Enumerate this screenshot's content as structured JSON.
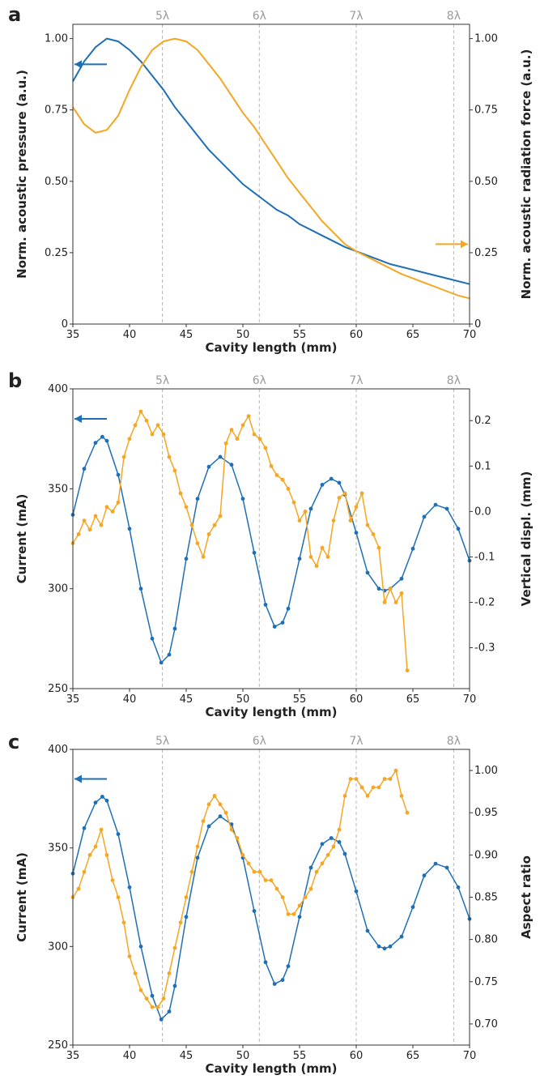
{
  "colors": {
    "blue": "#1f6fb5",
    "orange": "#f5a623",
    "lambda_line": "#b5b5b5",
    "axis": "#333333"
  },
  "chart_data": [
    {
      "panel_label": "a",
      "type": "line",
      "xlabel": "Cavity length (mm)",
      "xlim": [
        35,
        70
      ],
      "xticks": [
        "35",
        "40",
        "45",
        "50",
        "55",
        "60",
        "65",
        "70"
      ],
      "lambda_lines": [
        {
          "label": "5λ",
          "x": 42.9
        },
        {
          "label": "6λ",
          "x": 51.45
        },
        {
          "label": "7λ",
          "x": 60.0
        },
        {
          "label": "8λ",
          "x": 68.6
        }
      ],
      "y_left": {
        "label": "Norm. acoustic pressure (a.u.)",
        "lim": [
          0,
          1.05
        ],
        "ticks": [
          "0",
          "0.25",
          "0.50",
          "0.75",
          "1.00"
        ]
      },
      "y_right": {
        "label": "Norm. acoustic radiation force (a.u.)",
        "lim": [
          0,
          1.05
        ],
        "ticks": [
          "0",
          "0.25",
          "0.50",
          "0.75",
          "1.00"
        ]
      },
      "arrows": [
        {
          "series": "blue",
          "direction": "left",
          "x": 38.0,
          "y": 0.91
        },
        {
          "series": "orange",
          "direction": "right",
          "x": 67.0,
          "y": 0.28
        }
      ],
      "series": [
        {
          "color": "blue",
          "axis": "left",
          "marker": "none",
          "x": [
            35,
            36,
            37,
            38,
            39,
            40,
            41,
            42,
            43,
            44,
            45,
            46,
            47,
            48,
            49,
            50,
            51,
            52,
            53,
            54,
            55,
            56,
            57,
            58,
            59,
            60,
            61,
            62,
            63,
            64,
            65,
            66,
            67,
            68,
            69,
            70
          ],
          "y": [
            0.85,
            0.92,
            0.97,
            1.0,
            0.99,
            0.96,
            0.92,
            0.87,
            0.82,
            0.76,
            0.71,
            0.66,
            0.61,
            0.57,
            0.53,
            0.49,
            0.46,
            0.43,
            0.4,
            0.38,
            0.35,
            0.33,
            0.31,
            0.29,
            0.27,
            0.255,
            0.24,
            0.225,
            0.21,
            0.2,
            0.19,
            0.18,
            0.17,
            0.16,
            0.15,
            0.14
          ]
        },
        {
          "color": "orange",
          "axis": "right",
          "marker": "none",
          "x": [
            35,
            36,
            37,
            38,
            39,
            40,
            41,
            42,
            43,
            44,
            45,
            46,
            47,
            48,
            49,
            50,
            51,
            52,
            53,
            54,
            55,
            56,
            57,
            58,
            59,
            60,
            61,
            62,
            63,
            64,
            65,
            66,
            67,
            68,
            69,
            70
          ],
          "y": [
            0.76,
            0.7,
            0.67,
            0.68,
            0.73,
            0.82,
            0.9,
            0.96,
            0.99,
            1.0,
            0.99,
            0.96,
            0.91,
            0.86,
            0.8,
            0.74,
            0.69,
            0.63,
            0.57,
            0.51,
            0.46,
            0.41,
            0.36,
            0.32,
            0.28,
            0.255,
            0.235,
            0.215,
            0.195,
            0.175,
            0.16,
            0.145,
            0.13,
            0.115,
            0.1,
            0.09
          ]
        }
      ]
    },
    {
      "panel_label": "b",
      "type": "line",
      "xlabel": "Cavity length (mm)",
      "xlim": [
        35,
        70
      ],
      "xticks": [
        "35",
        "40",
        "45",
        "50",
        "55",
        "60",
        "65",
        "70"
      ],
      "lambda_lines": [
        {
          "label": "5λ",
          "x": 42.9
        },
        {
          "label": "6λ",
          "x": 51.45
        },
        {
          "label": "7λ",
          "x": 60.0
        },
        {
          "label": "8λ",
          "x": 68.6
        }
      ],
      "y_left": {
        "label": "Current (mA)",
        "lim": [
          250,
          400
        ],
        "ticks": [
          "250",
          "300",
          "350",
          "400"
        ]
      },
      "y_right": {
        "label": "Vertical displ. (mm)",
        "lim": [
          -0.39,
          0.27
        ],
        "ticks": [
          "-0.3",
          "-0.2",
          "-0.1",
          "0.0",
          "0.1",
          "0.2"
        ]
      },
      "arrows": [
        {
          "series": "blue",
          "direction": "left",
          "x": 38.0,
          "y": 385
        },
        {
          "series": "orange",
          "direction": "right",
          "x": 67.0,
          "y": 273
        }
      ],
      "series": [
        {
          "color": "blue",
          "axis": "left",
          "marker": "dot",
          "x": [
            35,
            36,
            37,
            37.6,
            38,
            39,
            40,
            41,
            42,
            42.8,
            43.5,
            44,
            45,
            46,
            47,
            48,
            49,
            50,
            51,
            52,
            52.8,
            53.5,
            54,
            55,
            56,
            57,
            57.8,
            58.5,
            59,
            60,
            61,
            62,
            62.5,
            63,
            64,
            65,
            66,
            67,
            68,
            69,
            70
          ],
          "y": [
            337,
            360,
            373,
            376,
            374,
            357,
            330,
            300,
            275,
            263,
            267,
            280,
            315,
            345,
            361,
            366,
            362,
            345,
            318,
            292,
            281,
            283,
            290,
            315,
            340,
            352,
            355,
            353,
            347,
            328,
            308,
            300,
            299,
            300,
            305,
            320,
            336,
            342,
            340,
            330,
            314
          ]
        },
        {
          "color": "orange",
          "axis": "right",
          "marker": "dot",
          "x": [
            35,
            35.5,
            36,
            36.5,
            37,
            37.5,
            38,
            38.5,
            39,
            39.5,
            40,
            40.5,
            41,
            41.5,
            42,
            42.5,
            43,
            43.5,
            44,
            44.5,
            45,
            45.5,
            46,
            46.5,
            47,
            47.5,
            48,
            48.5,
            49,
            49.5,
            50,
            50.5,
            51,
            51.5,
            52,
            52.5,
            53,
            53.5,
            54,
            54.5,
            55,
            55.5,
            56,
            56.5,
            57,
            57.5,
            58,
            58.5,
            59,
            59.5,
            60,
            60.5,
            61,
            61.5,
            62,
            62.5,
            63,
            63.5,
            64,
            64.5
          ],
          "y": [
            -0.07,
            -0.05,
            -0.02,
            -0.04,
            -0.01,
            -0.03,
            0.01,
            0.0,
            0.02,
            0.12,
            0.16,
            0.19,
            0.22,
            0.2,
            0.17,
            0.19,
            0.17,
            0.12,
            0.09,
            0.04,
            0.01,
            -0.03,
            -0.07,
            -0.1,
            -0.05,
            -0.03,
            -0.01,
            0.15,
            0.18,
            0.16,
            0.19,
            0.21,
            0.17,
            0.16,
            0.14,
            0.1,
            0.08,
            0.07,
            0.05,
            0.02,
            -0.02,
            0.0,
            -0.1,
            -0.12,
            -0.08,
            -0.1,
            -0.02,
            0.03,
            0.04,
            -0.02,
            0.01,
            0.04,
            -0.03,
            -0.05,
            -0.08,
            -0.2,
            -0.17,
            -0.2,
            -0.18,
            -0.35
          ]
        }
      ]
    },
    {
      "panel_label": "c",
      "type": "line",
      "xlabel": "Cavity length (mm)",
      "xlim": [
        35,
        70
      ],
      "xticks": [
        "35",
        "40",
        "45",
        "50",
        "55",
        "60",
        "65",
        "70"
      ],
      "lambda_lines": [
        {
          "label": "5λ",
          "x": 42.9
        },
        {
          "label": "6λ",
          "x": 51.45
        },
        {
          "label": "7λ",
          "x": 60.0
        },
        {
          "label": "8λ",
          "x": 68.6
        }
      ],
      "y_left": {
        "label": "Current (mA)",
        "lim": [
          250,
          400
        ],
        "ticks": [
          "250",
          "300",
          "350",
          "400"
        ]
      },
      "y_right": {
        "label": "Aspect ratio",
        "lim": [
          0.675,
          1.025
        ],
        "ticks": [
          "0.70",
          "0.75",
          "0.80",
          "0.85",
          "0.90",
          "0.95",
          "1.00"
        ]
      },
      "arrows": [
        {
          "series": "blue",
          "direction": "left",
          "x": 38.0,
          "y": 385
        },
        {
          "series": "orange",
          "direction": "right",
          "x": 67.0,
          "y": 268
        }
      ],
      "series": [
        {
          "color": "blue",
          "axis": "left",
          "marker": "dot",
          "x": [
            35,
            36,
            37,
            37.6,
            38,
            39,
            40,
            41,
            42,
            42.8,
            43.5,
            44,
            45,
            46,
            47,
            48,
            49,
            50,
            51,
            52,
            52.8,
            53.5,
            54,
            55,
            56,
            57,
            57.8,
            58.5,
            59,
            60,
            61,
            62,
            62.5,
            63,
            64,
            65,
            66,
            67,
            68,
            69,
            70
          ],
          "y": [
            337,
            360,
            373,
            376,
            374,
            357,
            330,
            300,
            275,
            263,
            267,
            280,
            315,
            345,
            361,
            366,
            362,
            345,
            318,
            292,
            281,
            283,
            290,
            315,
            340,
            352,
            355,
            353,
            347,
            328,
            308,
            300,
            299,
            300,
            305,
            320,
            336,
            342,
            340,
            330,
            314
          ]
        },
        {
          "color": "orange",
          "axis": "right",
          "marker": "dot",
          "x": [
            35,
            35.5,
            36,
            36.5,
            37,
            37.5,
            38,
            38.5,
            39,
            39.5,
            40,
            40.5,
            41,
            41.5,
            42,
            42.5,
            43,
            43.5,
            44,
            44.5,
            45,
            45.5,
            46,
            46.5,
            47,
            47.5,
            48,
            48.5,
            49,
            49.5,
            50,
            50.5,
            51,
            51.5,
            52,
            52.5,
            53,
            53.5,
            54,
            54.5,
            55,
            55.5,
            56,
            56.5,
            57,
            57.5,
            58,
            58.5,
            59,
            59.5,
            60,
            60.5,
            61,
            61.5,
            62,
            62.5,
            63,
            63.5,
            64,
            64.5
          ],
          "y": [
            0.85,
            0.86,
            0.88,
            0.9,
            0.91,
            0.93,
            0.9,
            0.87,
            0.85,
            0.82,
            0.78,
            0.76,
            0.74,
            0.73,
            0.72,
            0.72,
            0.73,
            0.76,
            0.79,
            0.82,
            0.85,
            0.88,
            0.91,
            0.94,
            0.96,
            0.97,
            0.96,
            0.95,
            0.93,
            0.92,
            0.9,
            0.89,
            0.88,
            0.88,
            0.87,
            0.87,
            0.86,
            0.85,
            0.83,
            0.83,
            0.84,
            0.85,
            0.86,
            0.88,
            0.89,
            0.9,
            0.91,
            0.93,
            0.97,
            0.99,
            0.99,
            0.98,
            0.97,
            0.98,
            0.98,
            0.99,
            0.99,
            1.0,
            0.97,
            0.95
          ]
        }
      ]
    }
  ]
}
